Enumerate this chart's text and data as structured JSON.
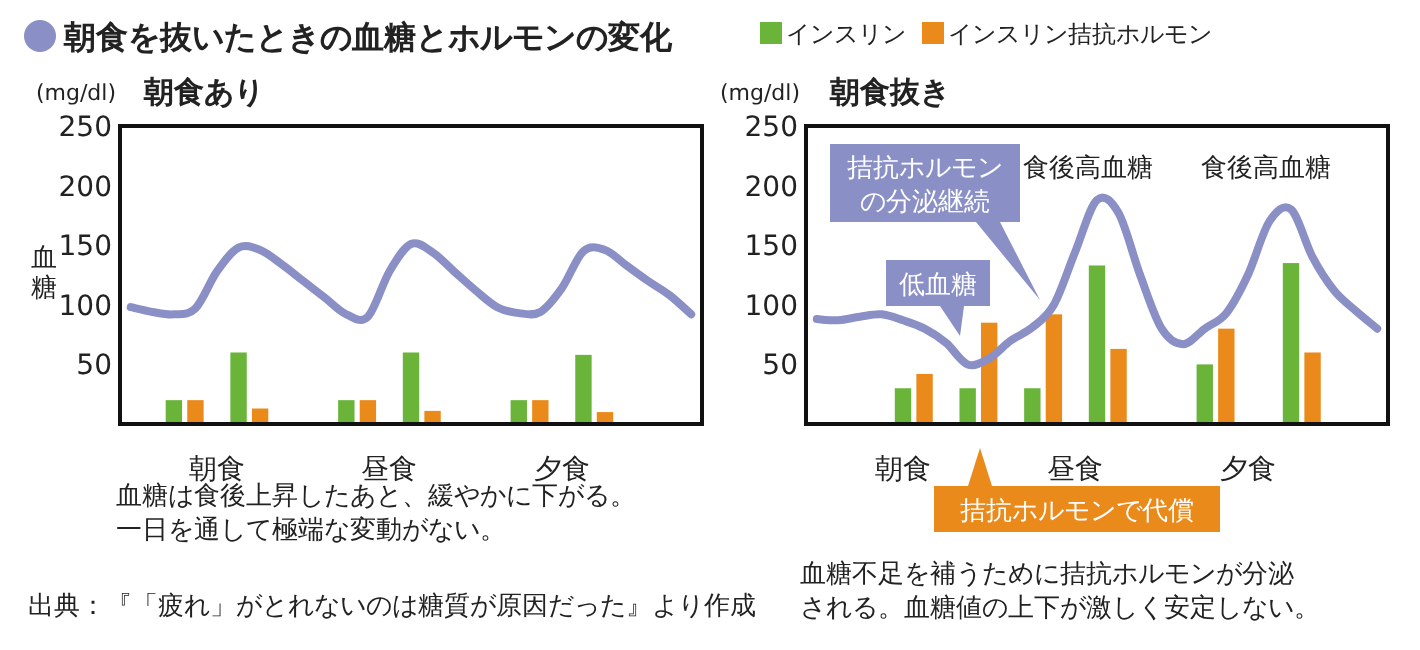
{
  "chart_data": [
    {
      "type": "bar",
      "title": "朝食を抜いたときの血糖とホルモンの変化",
      "subtitle": "朝食あり",
      "ylabel": "血糖",
      "ylim": [
        0,
        250
      ],
      "yticks": [
        50,
        100,
        150,
        200,
        250
      ],
      "grid": false,
      "legend": false,
      "categories": [
        null,
        null,
        null,
        null,
        "朝食",
        null,
        null,
        null,
        null,
        null,
        null,
        null,
        "昼食",
        null,
        null,
        null,
        null,
        null,
        null,
        null,
        "夕食",
        null,
        null,
        null,
        null,
        null,
        null
      ],
      "series": [
        {
          "type": "line",
          "color": "#8a8fc6",
          "values": [
            98,
            94,
            92,
            97,
            128,
            148,
            146,
            134,
            120,
            106,
            92,
            90,
            128,
            151,
            144,
            128,
            112,
            98,
            93,
            94,
            114,
            145,
            146,
            133,
            120,
            108,
            92
          ]
        },
        {
          "color": "#6ab43a",
          "values": [
            null,
            null,
            20,
            null,
            null,
            60,
            null,
            null,
            null,
            null,
            20,
            null,
            null,
            60,
            null,
            null,
            null,
            null,
            20,
            null,
            null,
            58,
            null,
            null,
            null,
            null,
            null
          ]
        },
        {
          "color": "#ea8a1a",
          "values": [
            null,
            null,
            null,
            20,
            null,
            null,
            13,
            null,
            null,
            null,
            null,
            20,
            null,
            null,
            11,
            null,
            null,
            null,
            null,
            20,
            null,
            null,
            10,
            null,
            null,
            null,
            null
          ]
        }
      ],
      "annotations": [
        "(mg/dl)",
        "血糖は食後上昇したあと、緩やかに下がる。一日を通して極端な変動がない。",
        "出典：『「疲れ」がとれないのは糖質が原因だった』より作成"
      ]
    },
    {
      "type": "bar",
      "title": "朝食抜き",
      "ylim": [
        0,
        250
      ],
      "yticks": [
        50,
        100,
        150,
        200,
        250
      ],
      "grid": false,
      "legend": "top",
      "categories": [
        null,
        null,
        null,
        null,
        "朝食",
        null,
        null,
        null,
        null,
        null,
        null,
        null,
        "昼食",
        null,
        null,
        null,
        null,
        null,
        null,
        null,
        "夕食",
        null,
        null,
        null,
        null,
        null,
        null
      ],
      "series": [
        {
          "type": "line",
          "color": "#8a8fc6",
          "values": [
            88,
            87,
            90,
            92,
            87,
            80,
            68,
            50,
            55,
            70,
            81,
            100,
            145,
            188,
            177,
            125,
            80,
            67,
            80,
            93,
            125,
            170,
            180,
            140,
            112,
            95,
            80
          ]
        },
        {
          "name": "インスリン",
          "color": "#6ab43a",
          "values": [
            null,
            null,
            null,
            null,
            30,
            null,
            null,
            30,
            null,
            null,
            30,
            null,
            null,
            133,
            null,
            null,
            null,
            null,
            50,
            null,
            null,
            null,
            135,
            null,
            null,
            null,
            null
          ]
        },
        {
          "name": "インスリン拮抗ホルモン",
          "color": "#ea8a1a",
          "values": [
            null,
            null,
            null,
            null,
            null,
            42,
            null,
            null,
            85,
            null,
            null,
            92,
            null,
            null,
            63,
            null,
            null,
            null,
            null,
            80,
            null,
            null,
            null,
            60,
            null,
            null,
            null
          ]
        }
      ],
      "annotations": [
        "(mg/dl)",
        "拮抗ホルモンの分泌継続",
        "低血糖",
        "食後高血糖",
        "食後高血糖",
        "拮抗ホルモンで代償",
        "血糖不足を補うために拮抗ホルモンが分泌される。血糖値の上下が激しく安定しない。"
      ]
    }
  ]
}
